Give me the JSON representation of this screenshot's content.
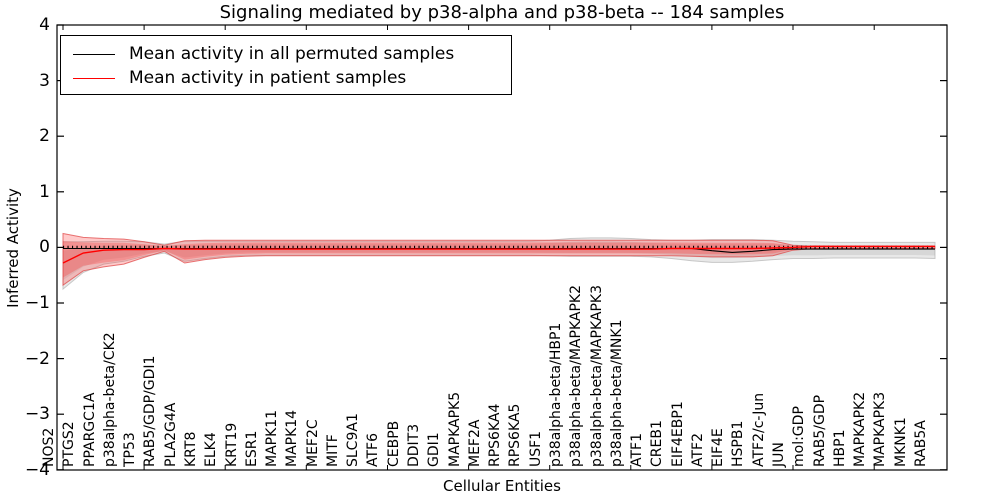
{
  "figure": {
    "title": "Signaling mediated by p38-alpha and p38-beta -- 184 samples",
    "xlabel": "Cellular Entities",
    "ylabel": "Inferred Activity"
  },
  "legend": {
    "items": [
      {
        "label": "Mean activity in all permuted samples",
        "color": "#000000"
      },
      {
        "label": "Mean activity in patient samples",
        "color": "#ff0000"
      }
    ]
  },
  "chart_data": {
    "type": "line",
    "title": "Signaling mediated by p38-alpha and p38-beta -- 184 samples",
    "xlabel": "Cellular Entities",
    "ylabel": "Inferred Activity",
    "ylim": [
      -4,
      4
    ],
    "yticks": [
      4,
      3,
      2,
      1,
      0,
      -1,
      -2,
      -3,
      -4
    ],
    "ytick_labels": [
      "4",
      "3",
      "2",
      "1",
      "0",
      "−1",
      "−2",
      "−3",
      "−4"
    ],
    "grid": false,
    "legend_position": "upper left",
    "categories": [
      "NOS2",
      "PTGS2",
      "PPARGC1A",
      "p38alpha-beta/CK2",
      "TP53",
      "RAB5/GDP/GDI1",
      "PLA2G4A",
      "KRT8",
      "ELK4",
      "KRT19",
      "ESR1",
      "MAPK11",
      "MAPK14",
      "MEF2C",
      "MITF",
      "SLC9A1",
      "ATF6",
      "CEBPB",
      "DDIT3",
      "GDI1",
      "MAPKAPK5",
      "MEF2A",
      "RPS6KA4",
      "RPS6KA5",
      "USF1",
      "p38alpha-beta/HBP1",
      "p38alpha-beta/MAPKAPK2",
      "p38alpha-beta/MAPKAPK3",
      "p38alpha-beta/MNK1",
      "ATF1",
      "CREB1",
      "EIF4EBP1",
      "ATF2",
      "EIF4E",
      "HSPB1",
      "ATF2/c-Jun",
      "JUN",
      "mol:GDP",
      "RAB5/GDP",
      "HBP1",
      "MAPKAPK2",
      "MAPKAPK3",
      "MKNK1",
      "RAB5A"
    ],
    "series": [
      {
        "name": "Mean activity in all permuted samples",
        "color": "#000000",
        "band_color": "#8c8c8c",
        "values": [
          -0.02,
          -0.02,
          -0.02,
          -0.02,
          -0.02,
          -0.02,
          -0.02,
          -0.02,
          -0.02,
          -0.02,
          -0.02,
          -0.02,
          -0.02,
          -0.02,
          -0.02,
          -0.02,
          -0.02,
          -0.02,
          -0.02,
          -0.02,
          -0.02,
          -0.02,
          -0.02,
          -0.02,
          -0.02,
          -0.02,
          -0.02,
          -0.02,
          -0.02,
          -0.02,
          -0.02,
          -0.02,
          -0.06,
          -0.09,
          -0.07,
          -0.04,
          -0.03,
          -0.03,
          -0.03,
          -0.03,
          -0.03,
          -0.03,
          -0.03,
          -0.03
        ],
        "band_upper": [
          0.1,
          0.1,
          0.11,
          0.11,
          0.1,
          0.06,
          0.11,
          0.11,
          0.11,
          0.11,
          0.11,
          0.11,
          0.11,
          0.11,
          0.11,
          0.11,
          0.11,
          0.11,
          0.11,
          0.11,
          0.11,
          0.11,
          0.11,
          0.11,
          0.13,
          0.16,
          0.17,
          0.17,
          0.16,
          0.14,
          0.13,
          0.13,
          0.14,
          0.14,
          0.14,
          0.13,
          0.11,
          0.1,
          0.09,
          0.09,
          0.09,
          0.09,
          0.09,
          0.09
        ],
        "band_lower": [
          -0.75,
          -0.45,
          -0.3,
          -0.25,
          -0.16,
          -0.1,
          -0.25,
          -0.2,
          -0.16,
          -0.14,
          -0.14,
          -0.14,
          -0.14,
          -0.14,
          -0.14,
          -0.14,
          -0.14,
          -0.14,
          -0.14,
          -0.14,
          -0.14,
          -0.14,
          -0.14,
          -0.14,
          -0.15,
          -0.16,
          -0.16,
          -0.16,
          -0.16,
          -0.17,
          -0.2,
          -0.24,
          -0.27,
          -0.27,
          -0.25,
          -0.22,
          -0.2,
          -0.2,
          -0.19,
          -0.19,
          -0.19,
          -0.19,
          -0.19,
          -0.2
        ]
      },
      {
        "name": "Mean activity in patient samples",
        "color": "#ff0000",
        "band_color": "#ff2a2a",
        "values": [
          -0.28,
          -0.1,
          -0.05,
          -0.04,
          -0.04,
          -0.02,
          -0.03,
          -0.03,
          -0.03,
          -0.03,
          -0.03,
          -0.03,
          -0.03,
          -0.03,
          -0.03,
          -0.03,
          -0.03,
          -0.03,
          -0.03,
          -0.03,
          -0.03,
          -0.03,
          -0.03,
          -0.03,
          -0.03,
          -0.03,
          -0.03,
          -0.03,
          -0.03,
          -0.03,
          -0.02,
          -0.02,
          -0.02,
          -0.02,
          -0.02,
          -0.01,
          0.0,
          0.02,
          0.02,
          0.02,
          0.02,
          0.02,
          0.02,
          0.02
        ],
        "band_upper": [
          0.25,
          0.18,
          0.16,
          0.15,
          0.1,
          0.04,
          0.12,
          0.13,
          0.13,
          0.13,
          0.13,
          0.13,
          0.13,
          0.13,
          0.13,
          0.13,
          0.13,
          0.13,
          0.13,
          0.13,
          0.13,
          0.13,
          0.13,
          0.13,
          0.13,
          0.13,
          0.13,
          0.13,
          0.13,
          0.13,
          0.13,
          0.13,
          0.13,
          0.13,
          0.13,
          0.12,
          0.04,
          0.02,
          0.02,
          0.02,
          0.02,
          0.02,
          0.02,
          0.02
        ],
        "band_lower": [
          -0.68,
          -0.42,
          -0.35,
          -0.3,
          -0.18,
          -0.07,
          -0.28,
          -0.22,
          -0.18,
          -0.16,
          -0.15,
          -0.15,
          -0.15,
          -0.15,
          -0.15,
          -0.15,
          -0.15,
          -0.15,
          -0.15,
          -0.15,
          -0.15,
          -0.15,
          -0.15,
          -0.15,
          -0.15,
          -0.15,
          -0.15,
          -0.15,
          -0.15,
          -0.15,
          -0.15,
          -0.16,
          -0.17,
          -0.17,
          -0.17,
          -0.15,
          -0.05,
          -0.02,
          -0.02,
          -0.02,
          -0.02,
          -0.02,
          -0.02,
          -0.02
        ]
      }
    ],
    "zero_line": 0
  },
  "colors": {
    "background": "#ffffff",
    "axis": "#000000"
  }
}
